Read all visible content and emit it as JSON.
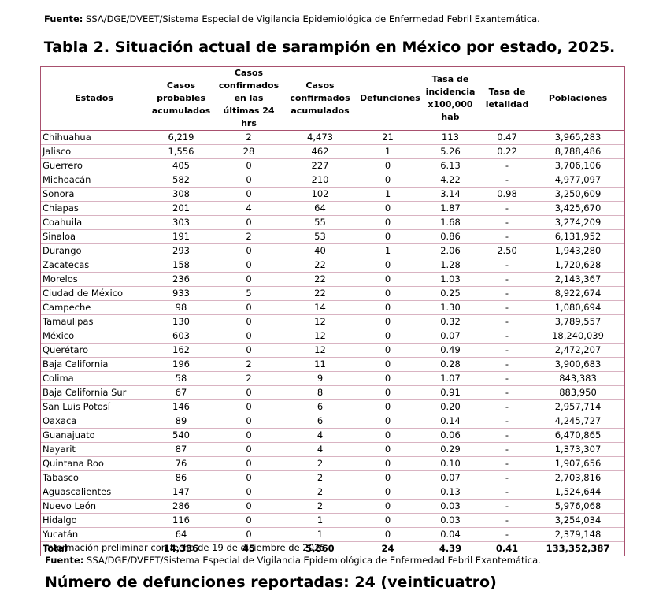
{
  "source": {
    "label": "Fuente:",
    "text": "SSA/DGE/DVEET/Sistema Especial de Vigilancia Epidemiológica de Enfermedad Febril Exantemática."
  },
  "title": "Tabla 2. Situación actual de sarampión en México por estado, 2025.",
  "table": {
    "headers": {
      "state": "Estados",
      "probable": "Casos probables acumulados",
      "confirmed_24h": "Casos confirmados en las últimas 24 hrs",
      "confirmed_cum": "Casos confirmados acumulados",
      "deaths": "Defunciones",
      "incidence": "Tasa de incidencia x100,000 hab",
      "lethality": "Tasa de letalidad",
      "population": "Poblaciones"
    },
    "rows": [
      {
        "state": "Chihuahua",
        "probable": "6,219",
        "confirmed_24h": "2",
        "confirmed_cum": "4,473",
        "deaths": "21",
        "incidence": "113",
        "lethality": "0.47",
        "population": "3,965,283"
      },
      {
        "state": "Jalisco",
        "probable": "1,556",
        "confirmed_24h": "28",
        "confirmed_cum": "462",
        "deaths": "1",
        "incidence": "5.26",
        "lethality": "0.22",
        "population": "8,788,486"
      },
      {
        "state": "Guerrero",
        "probable": "405",
        "confirmed_24h": "0",
        "confirmed_cum": "227",
        "deaths": "0",
        "incidence": "6.13",
        "lethality": "-",
        "population": "3,706,106"
      },
      {
        "state": "Michoacán",
        "probable": "582",
        "confirmed_24h": "0",
        "confirmed_cum": "210",
        "deaths": "0",
        "incidence": "4.22",
        "lethality": "-",
        "population": "4,977,097"
      },
      {
        "state": "Sonora",
        "probable": "308",
        "confirmed_24h": "0",
        "confirmed_cum": "102",
        "deaths": "1",
        "incidence": "3.14",
        "lethality": "0.98",
        "population": "3,250,609"
      },
      {
        "state": "Chiapas",
        "probable": "201",
        "confirmed_24h": "4",
        "confirmed_cum": "64",
        "deaths": "0",
        "incidence": "1.87",
        "lethality": "-",
        "population": "3,425,670"
      },
      {
        "state": "Coahuila",
        "probable": "303",
        "confirmed_24h": "0",
        "confirmed_cum": "55",
        "deaths": "0",
        "incidence": "1.68",
        "lethality": "-",
        "population": "3,274,209"
      },
      {
        "state": "Sinaloa",
        "probable": "191",
        "confirmed_24h": "2",
        "confirmed_cum": "53",
        "deaths": "0",
        "incidence": "0.86",
        "lethality": "-",
        "population": "6,131,952"
      },
      {
        "state": "Durango",
        "probable": "293",
        "confirmed_24h": "0",
        "confirmed_cum": "40",
        "deaths": "1",
        "incidence": "2.06",
        "lethality": "2.50",
        "population": "1,943,280"
      },
      {
        "state": "Zacatecas",
        "probable": "158",
        "confirmed_24h": "0",
        "confirmed_cum": "22",
        "deaths": "0",
        "incidence": "1.28",
        "lethality": "-",
        "population": "1,720,628"
      },
      {
        "state": "Morelos",
        "probable": "236",
        "confirmed_24h": "0",
        "confirmed_cum": "22",
        "deaths": "0",
        "incidence": "1.03",
        "lethality": "-",
        "population": "2,143,367"
      },
      {
        "state": "Ciudad de México",
        "probable": "933",
        "confirmed_24h": "5",
        "confirmed_cum": "22",
        "deaths": "0",
        "incidence": "0.25",
        "lethality": "-",
        "population": "8,922,674"
      },
      {
        "state": "Campeche",
        "probable": "98",
        "confirmed_24h": "0",
        "confirmed_cum": "14",
        "deaths": "0",
        "incidence": "1.30",
        "lethality": "-",
        "population": "1,080,694"
      },
      {
        "state": "Tamaulipas",
        "probable": "130",
        "confirmed_24h": "0",
        "confirmed_cum": "12",
        "deaths": "0",
        "incidence": "0.32",
        "lethality": "-",
        "population": "3,789,557"
      },
      {
        "state": "México",
        "probable": "603",
        "confirmed_24h": "0",
        "confirmed_cum": "12",
        "deaths": "0",
        "incidence": "0.07",
        "lethality": "-",
        "population": "18,240,039"
      },
      {
        "state": "Querétaro",
        "probable": "162",
        "confirmed_24h": "0",
        "confirmed_cum": "12",
        "deaths": "0",
        "incidence": "0.49",
        "lethality": "-",
        "population": "2,472,207"
      },
      {
        "state": "Baja California",
        "probable": "196",
        "confirmed_24h": "2",
        "confirmed_cum": "11",
        "deaths": "0",
        "incidence": "0.28",
        "lethality": "-",
        "population": "3,900,683"
      },
      {
        "state": "Colima",
        "probable": "58",
        "confirmed_24h": "2",
        "confirmed_cum": "9",
        "deaths": "0",
        "incidence": "1.07",
        "lethality": "-",
        "population": "843,383"
      },
      {
        "state": "Baja California Sur",
        "probable": "67",
        "confirmed_24h": "0",
        "confirmed_cum": "8",
        "deaths": "0",
        "incidence": "0.91",
        "lethality": "-",
        "population": "883,950"
      },
      {
        "state": "San Luis Potosí",
        "probable": "146",
        "confirmed_24h": "0",
        "confirmed_cum": "6",
        "deaths": "0",
        "incidence": "0.20",
        "lethality": "-",
        "population": "2,957,714"
      },
      {
        "state": "Oaxaca",
        "probable": "89",
        "confirmed_24h": "0",
        "confirmed_cum": "6",
        "deaths": "0",
        "incidence": "0.14",
        "lethality": "-",
        "population": "4,245,727"
      },
      {
        "state": "Guanajuato",
        "probable": "540",
        "confirmed_24h": "0",
        "confirmed_cum": "4",
        "deaths": "0",
        "incidence": "0.06",
        "lethality": "-",
        "population": "6,470,865"
      },
      {
        "state": "Nayarit",
        "probable": "87",
        "confirmed_24h": "0",
        "confirmed_cum": "4",
        "deaths": "0",
        "incidence": "0.29",
        "lethality": "-",
        "population": "1,373,307"
      },
      {
        "state": "Quintana Roo",
        "probable": "76",
        "confirmed_24h": "0",
        "confirmed_cum": "2",
        "deaths": "0",
        "incidence": "0.10",
        "lethality": "-",
        "population": "1,907,656"
      },
      {
        "state": "Tabasco",
        "probable": "86",
        "confirmed_24h": "0",
        "confirmed_cum": "2",
        "deaths": "0",
        "incidence": "0.07",
        "lethality": "-",
        "population": "2,703,816"
      },
      {
        "state": "Aguascalientes",
        "probable": "147",
        "confirmed_24h": "0",
        "confirmed_cum": "2",
        "deaths": "0",
        "incidence": "0.13",
        "lethality": "-",
        "population": "1,524,644"
      },
      {
        "state": "Nuevo León",
        "probable": "286",
        "confirmed_24h": "0",
        "confirmed_cum": "2",
        "deaths": "0",
        "incidence": "0.03",
        "lethality": "-",
        "population": "5,976,068"
      },
      {
        "state": "Hidalgo",
        "probable": "116",
        "confirmed_24h": "0",
        "confirmed_cum": "1",
        "deaths": "0",
        "incidence": "0.03",
        "lethality": "-",
        "population": "3,254,034"
      },
      {
        "state": "Yucatán",
        "probable": "64",
        "confirmed_24h": "0",
        "confirmed_cum": "1",
        "deaths": "0",
        "incidence": "0.04",
        "lethality": "-",
        "population": "2,379,148"
      }
    ],
    "total": {
      "state": "Total",
      "probable": "14,336",
      "confirmed_24h": "45",
      "confirmed_cum": "5,860",
      "deaths": "24",
      "incidence": "4.39",
      "lethality": "0.41",
      "population": "133,352,387"
    }
  },
  "footer": {
    "note": "Información preliminar con fecha de 19 de diciembre de 2025",
    "deaths_heading": "Número de defunciones reportadas: 24 (veinticuatro)"
  }
}
